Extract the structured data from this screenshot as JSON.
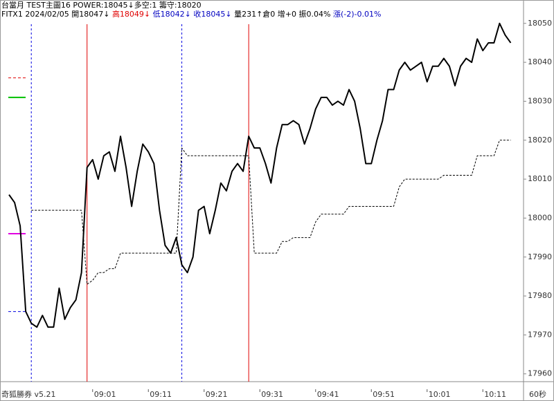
{
  "header": {
    "line1": "台當月 TEST主圖16 POWER:18045↓多空:1 籌守:18020",
    "line2": [
      {
        "text": "FITX1 2024/02/05 開18047↓",
        "color": "#000000"
      },
      {
        "text": "高18049↓",
        "color": "#e00000"
      },
      {
        "text": "低18042↓",
        "color": "#0000c0"
      },
      {
        "text": "收18045↓",
        "color": "#0000c0"
      },
      {
        "text": "量231↑倉0 增+0 振0.04%",
        "color": "#000000"
      },
      {
        "text": "漲(-2)-0.01%",
        "color": "#0000c0"
      }
    ]
  },
  "footer": {
    "app": "奇狐勝券 v5.21",
    "interval": "60秒"
  },
  "chart_data": {
    "type": "line",
    "categories": [
      null,
      null,
      null,
      null,
      null,
      null,
      null,
      null,
      null,
      null,
      null,
      null,
      null,
      null,
      null,
      "09:01",
      null,
      null,
      null,
      null,
      null,
      null,
      null,
      null,
      null,
      "09:11",
      null,
      null,
      null,
      null,
      null,
      null,
      null,
      null,
      null,
      "09:21",
      null,
      null,
      null,
      null,
      null,
      null,
      null,
      null,
      null,
      "09:31",
      null,
      null,
      null,
      null,
      null,
      null,
      null,
      null,
      null,
      "09:41",
      null,
      null,
      null,
      null,
      null,
      null,
      null,
      null,
      null,
      "09:51",
      null,
      null,
      null,
      null,
      null,
      null,
      null,
      null,
      null,
      "10:01",
      null,
      null,
      null,
      null,
      null,
      null,
      null,
      null,
      null,
      "10:11",
      null,
      null,
      null,
      null,
      null
    ],
    "series": [
      {
        "color": "#000000",
        "style": "solid",
        "values": [
          18006,
          18004,
          17998,
          17976,
          17973,
          17972,
          17975,
          17972,
          17972,
          17982,
          17974,
          17977,
          17979,
          17986,
          18013,
          18015,
          18010,
          18016,
          18017,
          18012,
          18021,
          18013,
          18003,
          18012,
          18019,
          18017,
          18014,
          18002,
          17993,
          17991,
          17995,
          17988,
          17986,
          17990,
          18002,
          18003,
          17996,
          18002,
          18009,
          18007,
          18012,
          18014,
          18012,
          18021,
          18018,
          18018,
          18014,
          18009,
          18018,
          18024,
          18024,
          18025,
          18024,
          18019,
          18023,
          18028,
          18031,
          18031,
          18029,
          18030,
          18029,
          18033,
          18030,
          18023,
          18014,
          18014,
          18020,
          18025,
          18033,
          18033,
          18038,
          18040,
          18038,
          18039,
          18040,
          18035,
          18039,
          18039,
          18041,
          18039,
          18034,
          18039,
          18041,
          18040,
          18046,
          18043,
          18045,
          18045,
          18050,
          18047,
          18045
        ]
      },
      {
        "color": "#000000",
        "style": "dashed",
        "values": [
          null,
          null,
          null,
          null,
          18002,
          18002,
          18002,
          18002,
          18002,
          18002,
          18002,
          18002,
          18002,
          18002,
          17983,
          17984,
          17986,
          17986,
          17987,
          17987,
          17991,
          17991,
          17991,
          17991,
          17991,
          17991,
          17991,
          17991,
          17991,
          17991,
          17991,
          18018,
          18016,
          18016,
          18016,
          18016,
          18016,
          18016,
          18016,
          18016,
          18016,
          18016,
          18016,
          18016,
          17991,
          17991,
          17991,
          17991,
          17991,
          17994,
          17994,
          17995,
          17995,
          17995,
          17995,
          17999,
          18001,
          18001,
          18001,
          18001,
          18001,
          18003,
          18003,
          18003,
          18003,
          18003,
          18003,
          18003,
          18003,
          18003,
          18008,
          18010,
          18010,
          18010,
          18010,
          18010,
          18010,
          18010,
          18011,
          18011,
          18011,
          18011,
          18011,
          18011,
          18016,
          18016,
          18016,
          18016,
          18020,
          18020,
          18020
        ]
      }
    ],
    "signals": [
      {
        "at": 4,
        "color": "#0000e0",
        "style": "dashed"
      },
      {
        "at": 14,
        "color": "#e00000",
        "style": "solid"
      },
      {
        "at": 31,
        "color": "#0000e0",
        "style": "dashed"
      },
      {
        "at": 43,
        "color": "#e00000",
        "style": "solid"
      }
    ],
    "levels": [
      {
        "value": 18036,
        "color": "#e00000",
        "style": "dashed"
      },
      {
        "value": 18031,
        "color": "#00c000",
        "style": "solid"
      },
      {
        "value": 17996,
        "color": "#e000e0",
        "style": "solid"
      },
      {
        "value": 17976,
        "color": "#0000e0",
        "style": "dashed"
      }
    ],
    "ylim": [
      17958,
      18056
    ],
    "yticks": [
      17960,
      17970,
      17980,
      17990,
      18000,
      18010,
      18020,
      18030,
      18040,
      18050
    ]
  }
}
